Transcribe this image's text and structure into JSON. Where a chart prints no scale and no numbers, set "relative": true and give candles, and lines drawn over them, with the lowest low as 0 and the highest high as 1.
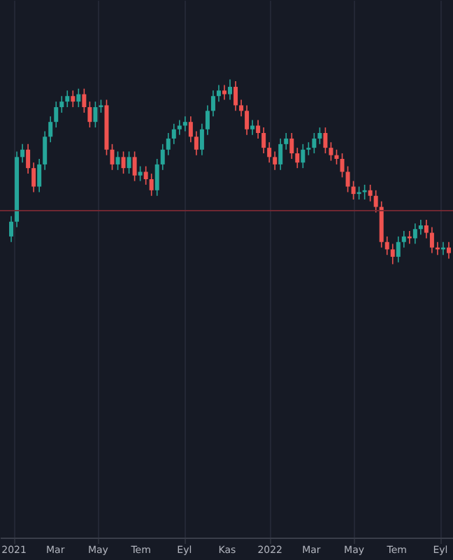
{
  "chart_data": {
    "type": "candlestick",
    "relative": true,
    "x": [
      "2020-12-28",
      "2021-01-05",
      "2021-01-13",
      "2021-01-21",
      "2021-01-29",
      "2021-02-06",
      "2021-02-14",
      "2021-02-22",
      "2021-03-02",
      "2021-03-10",
      "2021-03-18",
      "2021-03-26",
      "2021-04-03",
      "2021-04-11",
      "2021-04-19",
      "2021-04-27",
      "2021-05-05",
      "2021-05-13",
      "2021-05-21",
      "2021-05-29",
      "2021-06-06",
      "2021-06-14",
      "2021-06-22",
      "2021-06-30",
      "2021-07-08",
      "2021-07-16",
      "2021-07-24",
      "2021-08-01",
      "2021-08-09",
      "2021-08-17",
      "2021-08-25",
      "2021-09-02",
      "2021-09-10",
      "2021-09-18",
      "2021-09-26",
      "2021-10-04",
      "2021-10-12",
      "2021-10-20",
      "2021-10-28",
      "2021-11-05",
      "2021-11-13",
      "2021-11-21",
      "2021-11-29",
      "2021-12-07",
      "2021-12-15",
      "2021-12-23",
      "2021-12-31",
      "2022-01-08",
      "2022-01-16",
      "2022-01-24",
      "2022-02-01",
      "2022-02-09",
      "2022-02-17",
      "2022-02-25",
      "2022-03-05",
      "2022-03-13",
      "2022-03-21",
      "2022-03-29",
      "2022-04-06",
      "2022-04-14",
      "2022-04-22",
      "2022-04-30",
      "2022-05-08",
      "2022-05-16",
      "2022-05-24",
      "2022-06-01",
      "2022-06-09",
      "2022-06-17",
      "2022-06-25",
      "2022-07-03",
      "2022-07-11",
      "2022-07-19",
      "2022-07-27",
      "2022-08-04",
      "2022-08-12",
      "2022-08-20",
      "2022-08-28",
      "2022-09-05",
      "2022-09-13"
    ],
    "ohlc": [
      [
        0.15,
        0.26,
        0.12,
        0.23
      ],
      [
        0.23,
        0.61,
        0.2,
        0.58
      ],
      [
        0.58,
        0.65,
        0.55,
        0.62
      ],
      [
        0.62,
        0.65,
        0.49,
        0.52
      ],
      [
        0.52,
        0.55,
        0.39,
        0.42
      ],
      [
        0.42,
        0.57,
        0.39,
        0.54
      ],
      [
        0.54,
        0.72,
        0.51,
        0.69
      ],
      [
        0.69,
        0.8,
        0.66,
        0.77
      ],
      [
        0.77,
        0.88,
        0.74,
        0.85
      ],
      [
        0.85,
        0.91,
        0.82,
        0.88
      ],
      [
        0.88,
        0.94,
        0.85,
        0.91
      ],
      [
        0.91,
        0.94,
        0.85,
        0.88
      ],
      [
        0.88,
        0.95,
        0.85,
        0.92
      ],
      [
        0.92,
        0.95,
        0.82,
        0.85
      ],
      [
        0.85,
        0.88,
        0.74,
        0.77
      ],
      [
        0.77,
        0.88,
        0.74,
        0.85
      ],
      [
        0.85,
        0.89,
        0.82,
        0.86
      ],
      [
        0.86,
        0.89,
        0.59,
        0.62
      ],
      [
        0.62,
        0.65,
        0.51,
        0.54
      ],
      [
        0.54,
        0.61,
        0.51,
        0.58
      ],
      [
        0.58,
        0.61,
        0.49,
        0.52
      ],
      [
        0.52,
        0.61,
        0.49,
        0.58
      ],
      [
        0.58,
        0.61,
        0.45,
        0.48
      ],
      [
        0.48,
        0.53,
        0.45,
        0.5
      ],
      [
        0.5,
        0.53,
        0.43,
        0.46
      ],
      [
        0.46,
        0.49,
        0.37,
        0.4
      ],
      [
        0.4,
        0.57,
        0.37,
        0.54
      ],
      [
        0.54,
        0.65,
        0.51,
        0.62
      ],
      [
        0.62,
        0.71,
        0.59,
        0.68
      ],
      [
        0.68,
        0.76,
        0.65,
        0.73
      ],
      [
        0.73,
        0.78,
        0.7,
        0.75
      ],
      [
        0.75,
        0.8,
        0.72,
        0.77
      ],
      [
        0.77,
        0.8,
        0.66,
        0.69
      ],
      [
        0.69,
        0.72,
        0.59,
        0.62
      ],
      [
        0.62,
        0.76,
        0.59,
        0.73
      ],
      [
        0.73,
        0.86,
        0.7,
        0.83
      ],
      [
        0.83,
        0.94,
        0.8,
        0.91
      ],
      [
        0.91,
        0.97,
        0.88,
        0.94
      ],
      [
        0.94,
        0.97,
        0.89,
        0.92
      ],
      [
        0.92,
        1.0,
        0.89,
        0.96
      ],
      [
        0.96,
        0.99,
        0.83,
        0.86
      ],
      [
        0.86,
        0.89,
        0.8,
        0.83
      ],
      [
        0.83,
        0.86,
        0.7,
        0.73
      ],
      [
        0.73,
        0.78,
        0.7,
        0.75
      ],
      [
        0.75,
        0.78,
        0.68,
        0.71
      ],
      [
        0.71,
        0.74,
        0.6,
        0.63
      ],
      [
        0.63,
        0.66,
        0.55,
        0.58
      ],
      [
        0.58,
        0.61,
        0.51,
        0.54
      ],
      [
        0.54,
        0.68,
        0.51,
        0.65
      ],
      [
        0.65,
        0.71,
        0.62,
        0.68
      ],
      [
        0.68,
        0.71,
        0.57,
        0.6
      ],
      [
        0.6,
        0.63,
        0.52,
        0.55
      ],
      [
        0.55,
        0.65,
        0.52,
        0.62
      ],
      [
        0.62,
        0.66,
        0.59,
        0.63
      ],
      [
        0.63,
        0.71,
        0.6,
        0.68
      ],
      [
        0.68,
        0.74,
        0.65,
        0.71
      ],
      [
        0.71,
        0.74,
        0.6,
        0.63
      ],
      [
        0.63,
        0.66,
        0.56,
        0.59
      ],
      [
        0.59,
        0.62,
        0.54,
        0.57
      ],
      [
        0.57,
        0.6,
        0.47,
        0.5
      ],
      [
        0.5,
        0.53,
        0.39,
        0.42
      ],
      [
        0.42,
        0.45,
        0.35,
        0.38
      ],
      [
        0.38,
        0.42,
        0.35,
        0.39
      ],
      [
        0.39,
        0.43,
        0.35,
        0.4
      ],
      [
        0.4,
        0.43,
        0.34,
        0.37
      ],
      [
        0.37,
        0.4,
        0.28,
        0.31
      ],
      [
        0.31,
        0.34,
        0.09,
        0.12
      ],
      [
        0.12,
        0.15,
        0.05,
        0.08
      ],
      [
        0.08,
        0.11,
        0.0,
        0.04
      ],
      [
        0.04,
        0.15,
        0.01,
        0.12
      ],
      [
        0.12,
        0.18,
        0.09,
        0.15
      ],
      [
        0.15,
        0.18,
        0.11,
        0.14
      ],
      [
        0.14,
        0.22,
        0.11,
        0.19
      ],
      [
        0.19,
        0.24,
        0.16,
        0.21
      ],
      [
        0.21,
        0.24,
        0.14,
        0.17
      ],
      [
        0.17,
        0.2,
        0.06,
        0.09
      ],
      [
        0.09,
        0.12,
        0.05,
        0.08
      ],
      [
        0.08,
        0.12,
        0.05,
        0.09
      ],
      [
        0.09,
        0.12,
        0.03,
        0.06
      ]
    ],
    "xlim": [
      "2020-12-12",
      "2022-09-19"
    ],
    "xticks": [
      {
        "value": "2021-01-01",
        "label": "2021"
      },
      {
        "value": "2021-03-01",
        "label": "Mar"
      },
      {
        "value": "2021-05-01",
        "label": "May"
      },
      {
        "value": "2021-07-01",
        "label": "Tem"
      },
      {
        "value": "2021-09-01",
        "label": "Eyl"
      },
      {
        "value": "2021-11-01",
        "label": "Kas"
      },
      {
        "value": "2022-01-01",
        "label": "2022"
      },
      {
        "value": "2022-03-01",
        "label": "Mar"
      },
      {
        "value": "2022-05-01",
        "label": "May"
      },
      {
        "value": "2022-07-01",
        "label": "Tem"
      },
      {
        "value": "2022-09-01",
        "label": "Eyl"
      }
    ],
    "ref_lines": [
      {
        "axis": "y",
        "value": 0.29,
        "color": "#7a2a33"
      }
    ],
    "grid": "x"
  }
}
